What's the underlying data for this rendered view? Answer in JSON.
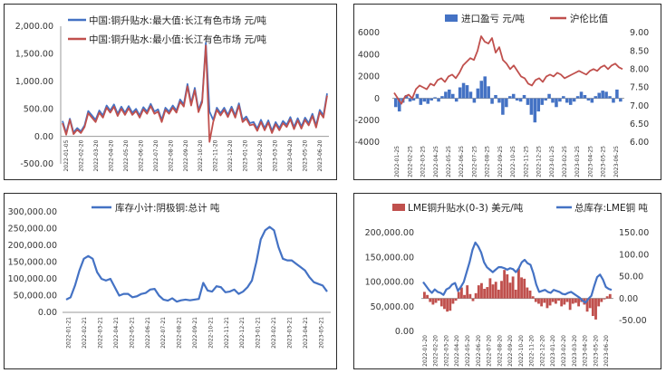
{
  "colors": {
    "blue": "#4472c4",
    "red": "#c0504d",
    "axis": "#9a9a9a"
  },
  "chart_data": [
    {
      "id": "c1",
      "type": "line",
      "ylim": [
        -500,
        2000
      ],
      "yticks": [
        "-500.00",
        "0.00",
        "500.00",
        "1,000.00",
        "1,500.00",
        "2,000.00"
      ],
      "ytick_values": [
        -500,
        0,
        500,
        1000,
        1500,
        2000
      ],
      "xticks": [
        "2022-01-05",
        "2022-02-20",
        "2022-03-20",
        "2022-04-20",
        "2022-05-20",
        "2022-06-20",
        "2022-07-20",
        "2022-08-20",
        "2022-09-20",
        "2022-10-20",
        "2022-11-20",
        "2022-12-20",
        "2023-01-20",
        "2023-02-20",
        "2023-03-20",
        "2023-04-20",
        "2023-05-20",
        "2023-06-20"
      ],
      "series": [
        {
          "name": "中国:铜升贴水:最大值:长江有色市场 元/吨",
          "color": "#4472c4",
          "values": [
            280,
            60,
            320,
            70,
            150,
            90,
            200,
            460,
            380,
            300,
            470,
            380,
            560,
            470,
            580,
            410,
            540,
            430,
            550,
            430,
            500,
            380,
            530,
            450,
            590,
            450,
            490,
            300,
            520,
            450,
            560,
            470,
            670,
            580,
            950,
            600,
            880,
            480,
            660,
            1700,
            450,
            300,
            520,
            420,
            520,
            390,
            540,
            380,
            600,
            300,
            360,
            240,
            260,
            140,
            300,
            150,
            290,
            100,
            260,
            150,
            280,
            210,
            350,
            170,
            330,
            180,
            340,
            240,
            410,
            200,
            480,
            380,
            780
          ]
        },
        {
          "name": "中国:铜升贴水:最小值:长江有色市场 元/吨",
          "color": "#c0504d",
          "values": [
            240,
            30,
            300,
            40,
            120,
            60,
            170,
            420,
            340,
            260,
            430,
            340,
            520,
            430,
            540,
            370,
            500,
            390,
            510,
            390,
            460,
            340,
            490,
            410,
            550,
            410,
            450,
            260,
            480,
            410,
            520,
            430,
            630,
            540,
            910,
            560,
            840,
            440,
            620,
            1650,
            -100,
            260,
            480,
            380,
            480,
            350,
            500,
            340,
            560,
            260,
            320,
            200,
            220,
            100,
            260,
            110,
            250,
            60,
            220,
            110,
            240,
            170,
            310,
            130,
            290,
            140,
            300,
            200,
            370,
            160,
            440,
            340,
            740
          ]
        }
      ]
    },
    {
      "id": "c2",
      "type": "bar+line",
      "ylim_left": [
        -4000,
        6000
      ],
      "ylim_right": [
        6.0,
        9.0
      ],
      "yticks_left": [
        "-4000",
        "-2000",
        "0",
        "2000",
        "4000",
        "6000"
      ],
      "ytick_left_values": [
        -4000,
        -2000,
        0,
        2000,
        4000,
        6000
      ],
      "yticks_right": [
        "6.00",
        "6.50",
        "7.00",
        "7.50",
        "8.00",
        "8.50",
        "9.00"
      ],
      "ytick_right_values": [
        6.0,
        6.5,
        7.0,
        7.5,
        8.0,
        8.5,
        9.0
      ],
      "xticks": [
        "2022-01-25",
        "2022-02-25",
        "2022-03-25",
        "2022-04-25",
        "2022-05-25",
        "2022-06-25",
        "2022-07-25",
        "2022-08-25",
        "2022-09-25",
        "2022-10-25",
        "2022-11-25",
        "2022-12-25",
        "2023-01-25",
        "2023-02-25",
        "2023-03-25",
        "2023-04-25",
        "2023-05-25",
        "2023-06-25"
      ],
      "series": [
        {
          "name": "进口盈亏 元/吨",
          "kind": "bar",
          "color": "#4472c4",
          "values": [
            -800,
            -1200,
            -400,
            300,
            -300,
            -200,
            400,
            -600,
            -300,
            -500,
            -200,
            100,
            -300,
            200,
            600,
            800,
            400,
            -300,
            1000,
            1400,
            1200,
            600,
            -400,
            900,
            1600,
            2000,
            1100,
            -500,
            300,
            -400,
            -1500,
            -800,
            200,
            400,
            -200,
            -300,
            300,
            -600,
            -1500,
            -2200,
            -1200,
            -600,
            -200,
            400,
            -400,
            -800,
            -300,
            200,
            -400,
            -600,
            -300,
            200,
            600,
            300,
            -200,
            -400,
            200,
            500,
            700,
            600,
            200,
            -400,
            800,
            -300
          ]
        },
        {
          "name": "沪伦比值",
          "kind": "line",
          "color": "#c0504d",
          "values": [
            7.35,
            7.2,
            7.05,
            7.25,
            7.3,
            7.2,
            7.45,
            7.55,
            7.5,
            7.45,
            7.6,
            7.55,
            7.7,
            7.75,
            7.65,
            7.8,
            7.85,
            7.75,
            7.9,
            8.1,
            8.2,
            8.3,
            8.25,
            8.5,
            8.9,
            8.75,
            8.7,
            8.85,
            8.45,
            8.6,
            8.25,
            8.15,
            8.0,
            8.1,
            7.95,
            7.8,
            7.75,
            7.6,
            7.55,
            7.7,
            7.75,
            7.65,
            7.8,
            7.85,
            7.8,
            7.9,
            7.85,
            7.75,
            7.8,
            7.85,
            7.9,
            7.95,
            7.9,
            7.85,
            7.95,
            8.0,
            7.95,
            8.05,
            8.1,
            8.0,
            8.1,
            8.15,
            8.05,
            8.0
          ]
        }
      ]
    },
    {
      "id": "c3",
      "type": "line",
      "ylim": [
        0,
        300000
      ],
      "yticks": [
        "0.00",
        "50,000.00",
        "100,000.00",
        "150,000.00",
        "200,000.00",
        "250,000.00",
        "300,000.00"
      ],
      "ytick_values": [
        0,
        50000,
        100000,
        150000,
        200000,
        250000,
        300000
      ],
      "xticks": [
        "2022-01-21",
        "2022-02-21",
        "2022-03-21",
        "2022-04-21",
        "2022-05-21",
        "2022-06-21",
        "2022-07-21",
        "2022-08-21",
        "2022-09-21",
        "2022-10-21",
        "2022-11-21",
        "2022-12-21",
        "2023-01-21",
        "2023-02-21",
        "2023-03-21",
        "2023-04-21",
        "2023-05-21"
      ],
      "series": [
        {
          "name": "库存小计:阴极铜:总计 吨",
          "color": "#4472c4",
          "values": [
            38000,
            45000,
            80000,
            125000,
            160000,
            168000,
            160000,
            120000,
            100000,
            95000,
            100000,
            75000,
            50000,
            55000,
            55000,
            45000,
            48000,
            55000,
            58000,
            68000,
            70000,
            50000,
            38000,
            35000,
            42000,
            32000,
            36000,
            38000,
            36000,
            38000,
            40000,
            88000,
            65000,
            62000,
            78000,
            75000,
            60000,
            62000,
            68000,
            55000,
            62000,
            75000,
            95000,
            150000,
            218000,
            245000,
            255000,
            245000,
            195000,
            160000,
            155000,
            155000,
            145000,
            135000,
            125000,
            105000,
            90000,
            85000,
            80000,
            62000
          ]
        }
      ]
    },
    {
      "id": "c4",
      "type": "bar+line",
      "ylim_left": [
        0,
        200000
      ],
      "ylim_right": [
        -75,
        150
      ],
      "yticks_left": [
        "0.00",
        "50,000.00",
        "100,000.00",
        "150,000.00",
        "200,000.00"
      ],
      "ytick_left_values": [
        0,
        50000,
        100000,
        150000,
        200000
      ],
      "yticks_right": [
        "-50.00",
        "0.00",
        "50.00",
        "100.00",
        "150.00"
      ],
      "ytick_right_values": [
        -50,
        0,
        50,
        100,
        150
      ],
      "xticks": [
        "2022-01-20",
        "2022-02-20",
        "2022-03-20",
        "2022-04-20",
        "2022-05-20",
        "2022-06-20",
        "2022-07-20",
        "2022-08-20",
        "2022-09-20",
        "2022-10-20",
        "2022-11-20",
        "2022-12-20",
        "2023-01-20",
        "2023-02-20",
        "2023-03-20",
        "2023-04-20",
        "2023-05-20",
        "2023-06-20"
      ],
      "series": [
        {
          "name": "LME铜升贴水(0-3) 美元/吨",
          "kind": "bar",
          "color": "#c0504d",
          "values": [
            15,
            8,
            -8,
            -14,
            -10,
            -5,
            -18,
            -24,
            -30,
            -28,
            -12,
            -5,
            15,
            25,
            8,
            30,
            10,
            -6,
            12,
            30,
            35,
            22,
            26,
            46,
            32,
            38,
            20,
            40,
            65,
            55,
            36,
            50,
            20,
            68,
            48,
            45,
            25,
            18,
            5,
            -8,
            -12,
            -18,
            -10,
            -22,
            -16,
            -8,
            -12,
            -5,
            -18,
            -14,
            -8,
            -26,
            -12,
            -10,
            -18,
            -8,
            -14,
            -30,
            -22,
            -40,
            -48,
            -18,
            -8,
            -2,
            5,
            10
          ]
        },
        {
          "name": "总库存:LME铜 吨",
          "kind": "line",
          "color": "#4472c4",
          "values": [
            100000,
            92000,
            84000,
            78000,
            85000,
            80000,
            78000,
            74000,
            85000,
            88000,
            95000,
            98000,
            82000,
            90000,
            100000,
            120000,
            140000,
            165000,
            180000,
            172000,
            160000,
            140000,
            130000,
            125000,
            120000,
            125000,
            130000,
            130000,
            128000,
            125000,
            128000,
            126000,
            120000,
            128000,
            140000,
            145000,
            138000,
            135000,
            118000,
            95000,
            80000,
            82000,
            84000,
            80000,
            78000,
            84000,
            82000,
            80000,
            76000,
            75000,
            78000,
            80000,
            76000,
            72000,
            68000,
            62000,
            58000,
            66000,
            72000,
            92000,
            110000,
            115000,
            105000,
            90000,
            86000,
            84000
          ]
        }
      ]
    }
  ]
}
